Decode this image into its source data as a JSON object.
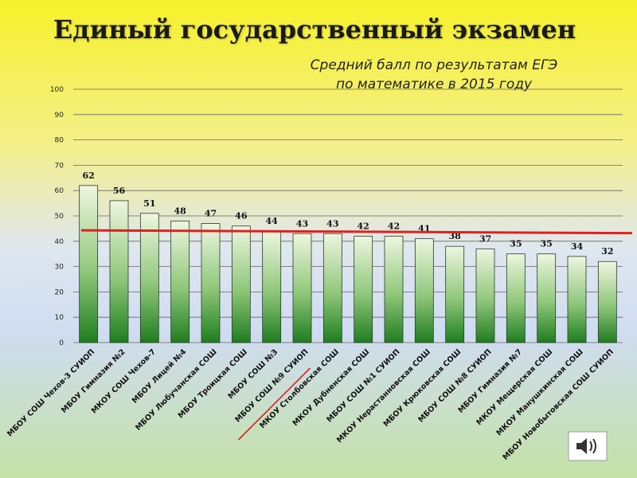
{
  "header": {
    "title": "Единый государственный экзамен",
    "subtitle_line1": "Средний балл по результатам ЕГЭ",
    "subtitle_line2": "по математике в 2015 году"
  },
  "chart_data": {
    "type": "bar",
    "title": "Средний балл по результатам ЕГЭ по математике в 2015 году",
    "xlabel": "",
    "ylabel": "",
    "ylim": [
      0,
      100
    ],
    "yticks": [
      0,
      10,
      20,
      30,
      40,
      50,
      60,
      70,
      80,
      90,
      100
    ],
    "grid": true,
    "categories": [
      "МБОУ СОШ Чехов-3 СУИОП",
      "МБОУ Гимназия №2",
      "МКОУ СОШ Чехов-7",
      "МБОУ Лицей №4",
      "МБОУ Любучанская СОШ",
      "МБОУ Троицкая СОШ",
      "МБОУ СОШ №3",
      "МБОУ СОШ №9 СУИОП",
      "МКОУ Столбовская СОШ",
      "МКОУ Дубненская СОШ",
      "МБОУ СОШ №1 СУИОП",
      "МКОУ Нерастанновская СОШ",
      "МБОУ Крюковская СОШ",
      "МБОУ СОШ №8 СУИОП",
      "МБОУ Гимназия №7",
      "МКОУ Мещерская СОШ",
      "МКОУ Манушкинская СОШ",
      "МБОУ Новобытовская СОШ СУИОП"
    ],
    "values": [
      62,
      56,
      51,
      48,
      47,
      46,
      44,
      43,
      43,
      42,
      42,
      41,
      38,
      37,
      35,
      35,
      34,
      32
    ],
    "average_line": {
      "start": 44.3,
      "end": 43.2,
      "color": "#e02020"
    },
    "colors": {
      "bar_top": "#eef6e0",
      "bar_bottom": "#1f7d1f",
      "bar_stroke": "#2a3a2a",
      "grid": "#666666",
      "highlight_underline": "#e02020"
    },
    "highlighted_category_index": 7
  },
  "decor": {
    "icon": "sound-speaker-icon"
  }
}
